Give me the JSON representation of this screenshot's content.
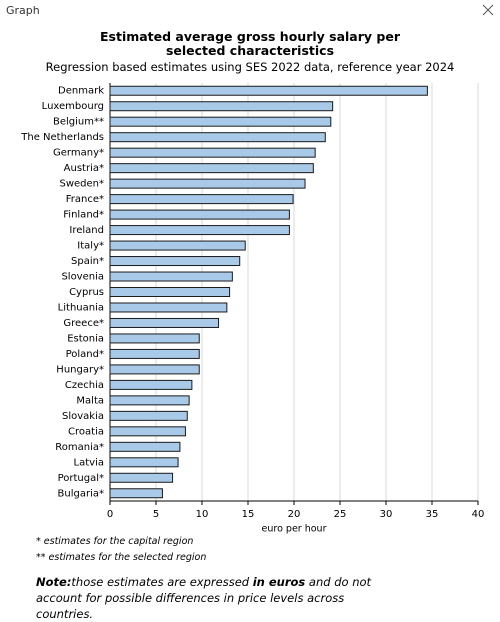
{
  "window": {
    "title": "Graph"
  },
  "chart_data": {
    "type": "bar",
    "orientation": "horizontal",
    "title": "Estimated average gross hourly salary per selected characteristics",
    "subtitle": "Regression based estimates using SES 2022 data, reference year 2024",
    "categories": [
      "Denmark",
      "Luxembourg",
      "Belgium**",
      "The Netherlands",
      "Germany*",
      "Austria*",
      "Sweden*",
      "France*",
      "Finland*",
      "Ireland",
      "Italy*",
      "Spain*",
      "Slovenia",
      "Cyprus",
      "Lithuania",
      "Greece*",
      "Estonia",
      "Poland*",
      "Hungary*",
      "Czechia",
      "Malta",
      "Slovakia",
      "Croatia",
      "Romania*",
      "Latvia",
      "Portugal*",
      "Bulgaria*"
    ],
    "values": [
      34.5,
      24.2,
      24.0,
      23.4,
      22.3,
      22.1,
      21.2,
      19.9,
      19.5,
      19.5,
      14.7,
      14.1,
      13.3,
      13.0,
      12.7,
      11.8,
      9.7,
      9.7,
      9.7,
      8.9,
      8.6,
      8.4,
      8.2,
      7.6,
      7.4,
      6.8,
      5.7
    ],
    "color": "#a9c9e8",
    "xlim": [
      0,
      40
    ],
    "xticks": [
      0,
      5,
      10,
      15,
      20,
      25,
      30,
      35,
      40
    ],
    "xlabel": "euro per hour",
    "grid": true
  },
  "footnotes": [
    "* estimates for the capital region",
    "** estimates for the selected region"
  ],
  "note": [
    "Note:",
    "those estimates are expressed ",
    "in euros",
    " and do not account for possible differences in price levels across countries."
  ]
}
